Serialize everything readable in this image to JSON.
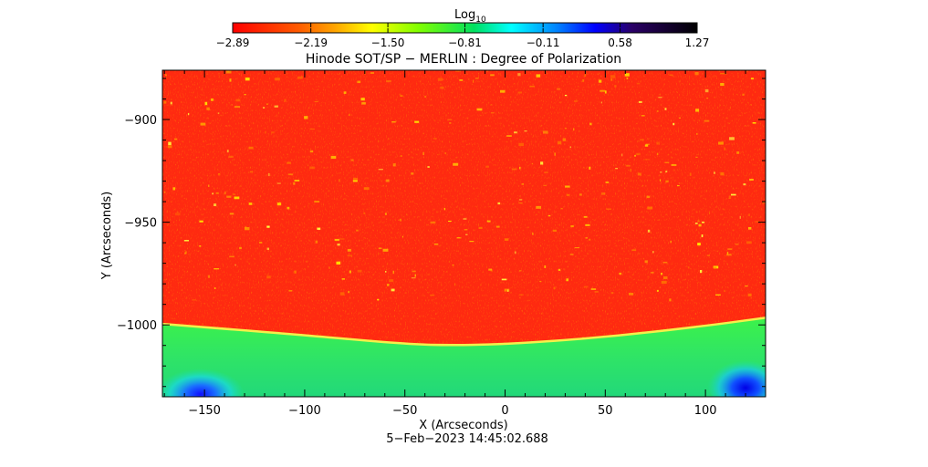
{
  "chart_data": {
    "type": "heatmap",
    "title": "Hinode SOT/SP − MERLIN : Degree of Polarization",
    "xlabel": "X (Arcseconds)",
    "ylabel": "Y (Arcseconds)",
    "xlim": [
      -171,
      130
    ],
    "ylim": [
      -1035,
      -876
    ],
    "x_ticks": [
      -150,
      -100,
      -50,
      0,
      50,
      100
    ],
    "x_tick_labels": [
      "−150",
      "−100",
      "−50",
      "0",
      "50",
      "100"
    ],
    "y_ticks": [
      -900,
      -950,
      -1000
    ],
    "y_tick_labels": [
      "−900",
      "−950",
      "−1000"
    ],
    "colorbar": {
      "label_base": "Log",
      "label_sub": "10",
      "ticks": [
        -2.89,
        -2.19,
        -1.5,
        -0.81,
        -0.11,
        0.58,
        1.27
      ],
      "tick_labels": [
        "−2.89",
        "−2.19",
        "−1.50",
        "−0.81",
        "−0.11",
        "0.58",
        "1.27"
      ],
      "colormap": [
        "#ff0000",
        "#ffa500",
        "#ffff00",
        "#00e000",
        "#00ffff",
        "#0000ff",
        "#1a0033",
        "#000000"
      ]
    },
    "limb": {
      "points": [
        [
          -171,
          -999.5
        ],
        [
          -100,
          -1005
        ],
        [
          -60,
          -1008.5
        ],
        [
          -35,
          -1010
        ],
        [
          0,
          -1009.5
        ],
        [
          50,
          -1006
        ],
        [
          100,
          -1000.5
        ],
        [
          130,
          -996.5
        ]
      ],
      "disk_value": -2.89,
      "offlimb_value": -0.9
    },
    "blue_patches": [
      {
        "x": -152,
        "y": -1030,
        "value": 0.2
      },
      {
        "x": 120,
        "y": -1028,
        "value": 0.45
      }
    ],
    "timestamp": "5−Feb−2023 14:45:02.688"
  }
}
